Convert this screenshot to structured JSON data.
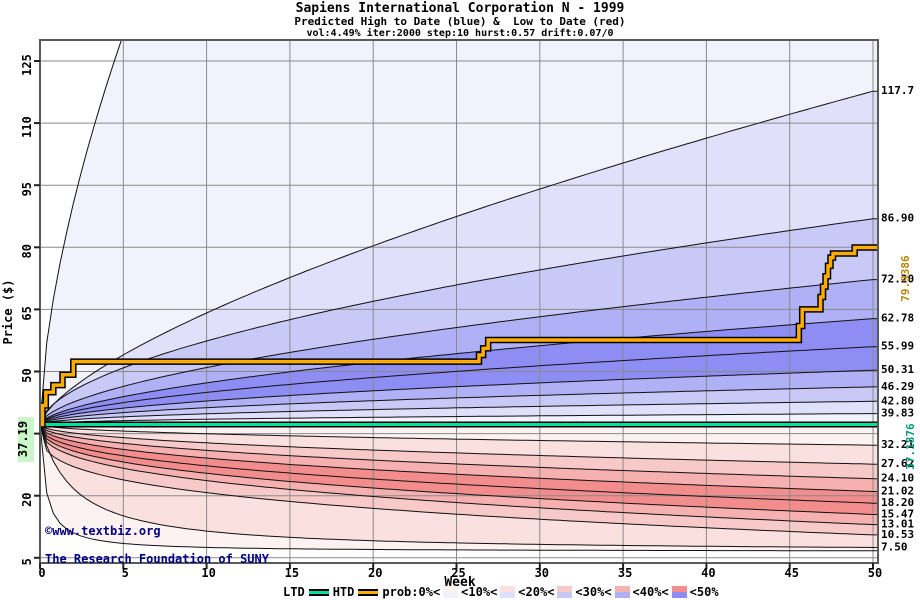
{
  "header": {
    "title": "Sapiens International Corporation N - 1999",
    "subtitle": "Predicted High to Date (blue) &  Low to Date (red)",
    "params": "vol:4.49% iter:2000 step:10 hurst:0.57 drift:0.07/0"
  },
  "chart_data": {
    "type": "area",
    "title": "Sapiens International Corporation N - 1999",
    "xlabel": "Week",
    "ylabel": "Price ($)",
    "x_ticks": [
      0,
      5,
      10,
      15,
      20,
      25,
      30,
      35,
      40,
      45,
      50
    ],
    "y_ticks": [
      5,
      20,
      35,
      50,
      65,
      80,
      95,
      110,
      125
    ],
    "y_tick_labels": [
      5,
      20,
      50,
      65,
      80,
      95,
      110,
      125
    ],
    "x_range": [
      0,
      50.3
    ],
    "y_range": [
      3.7,
      130.1
    ],
    "start_price": 37.19,
    "start_price_label": "37.19",
    "grid_on": true,
    "legend_position": "bottom",
    "ltd": {
      "name": "LTD",
      "value": 37.1876,
      "right_label": "37.1876",
      "left_label": "37.19",
      "color": "#00E0A0",
      "label_color": "#00997A",
      "left_label_bg": "#c9f7c9"
    },
    "htd": {
      "name": "HTD",
      "final_value": 79.9386,
      "right_label": "79.9386",
      "color": "#FFAC00",
      "label_color": "#B8860B",
      "steps": [
        [
          0,
          37.19
        ],
        [
          0.15,
          41.8
        ],
        [
          0.35,
          45.0
        ],
        [
          0.8,
          46.7
        ],
        [
          1.35,
          49.2
        ],
        [
          2.0,
          52.4
        ],
        [
          26.35,
          54.0
        ],
        [
          26.6,
          55.6
        ],
        [
          26.9,
          57.6
        ],
        [
          45.55,
          61.0
        ],
        [
          45.75,
          65.0
        ],
        [
          46.85,
          68.0
        ],
        [
          47.0,
          70.5
        ],
        [
          47.15,
          73.0
        ],
        [
          47.3,
          75.5
        ],
        [
          47.45,
          77.5
        ],
        [
          47.6,
          78.5
        ],
        [
          48.9,
          79.9386
        ]
      ]
    },
    "high_percentiles": [
      {
        "pct": "90%",
        "end": 39.83,
        "k": 0.45,
        "label": "39.83"
      },
      {
        "pct": "80%",
        "end": 42.8,
        "k": 0.48,
        "label": "42.80"
      },
      {
        "pct": "70%",
        "end": 46.29,
        "k": 0.5,
        "label": "46.29"
      },
      {
        "pct": "60%",
        "end": 50.31,
        "k": 0.52,
        "label": "50.31"
      },
      {
        "pct": "50%",
        "end": 55.99,
        "k": 0.55,
        "label": "55.99"
      },
      {
        "pct": "40%",
        "end": 62.78,
        "k": 0.58,
        "label": "62.78"
      },
      {
        "pct": "30%",
        "end": 72.2,
        "k": 0.58,
        "label": "72.20"
      },
      {
        "pct": "20%",
        "end": 86.9,
        "k": 0.56,
        "label": "86.90"
      },
      {
        "pct": "10%",
        "end": 117.7,
        "k": 0.68,
        "label": "117.7"
      },
      {
        "pct": "max",
        "end": 430.0,
        "k": 0.62,
        "label": ""
      }
    ],
    "low_percentiles": [
      {
        "pct": "10%",
        "end": 32.21,
        "k": 0.5,
        "label": "32.21"
      },
      {
        "pct": "20%",
        "end": 27.62,
        "k": 0.48,
        "label": "27.62"
      },
      {
        "pct": "30%",
        "end": 24.1,
        "k": 0.46,
        "label": "24.10"
      },
      {
        "pct": "40%",
        "end": 21.02,
        "k": 0.43,
        "label": "21.02"
      },
      {
        "pct": "50%",
        "end": 18.2,
        "k": 0.4,
        "label": "18.20"
      },
      {
        "pct": "60%",
        "end": 15.47,
        "k": 0.38,
        "label": "15.47"
      },
      {
        "pct": "70%",
        "end": 13.01,
        "k": 0.36,
        "label": "13.01"
      },
      {
        "pct": "80%",
        "end": 10.53,
        "k": 0.3,
        "label": "10.53"
      },
      {
        "pct": "90%",
        "end": 7.5,
        "hyp": 0.5,
        "label": "7.50"
      },
      {
        "pct": "min",
        "end": 6.7,
        "hyp": 2.9,
        "label": ""
      }
    ],
    "band_colors_high": [
      "#f2f2fd",
      "#e0e0fb",
      "#c9c9f8",
      "#b0b0f6",
      "#8d8df3",
      "#8d8df3",
      "#b0b0f6",
      "#c9c9f8",
      "#e0e0fb",
      "#f2f2fd"
    ],
    "band_colors_low": [
      "#fdf2f2",
      "#fbe0e0",
      "#f8c9c9",
      "#f6b0b0",
      "#f38d8d",
      "#f38d8d",
      "#f6b0b0",
      "#f8c9c9",
      "#fbe0e0",
      "#fdf2f2"
    ],
    "grid_color": "#8a8a8a",
    "frame_color": "#5a5a5a",
    "line_color": "#111111"
  },
  "legend": {
    "ltd_label": "LTD",
    "htd_label": "HTD",
    "prob_labels": [
      "prob:0%<",
      "<10%<",
      "<20%<",
      "<30%<",
      "<40%<",
      "<50%"
    ],
    "swatches": [
      {
        "top": "#fdf2f2",
        "bottom": "#f2f2fd"
      },
      {
        "top": "#fbe0e0",
        "bottom": "#e0e0fb"
      },
      {
        "top": "#f8c9c9",
        "bottom": "#c9c9f8"
      },
      {
        "top": "#f6b0b0",
        "bottom": "#b0b0f6"
      },
      {
        "top": "#f38d8d",
        "bottom": "#8d8df3"
      }
    ]
  },
  "footer": {
    "copyright_url": "©www.textbiz.org",
    "copyright_org": "The Research Foundation of SUNY"
  }
}
